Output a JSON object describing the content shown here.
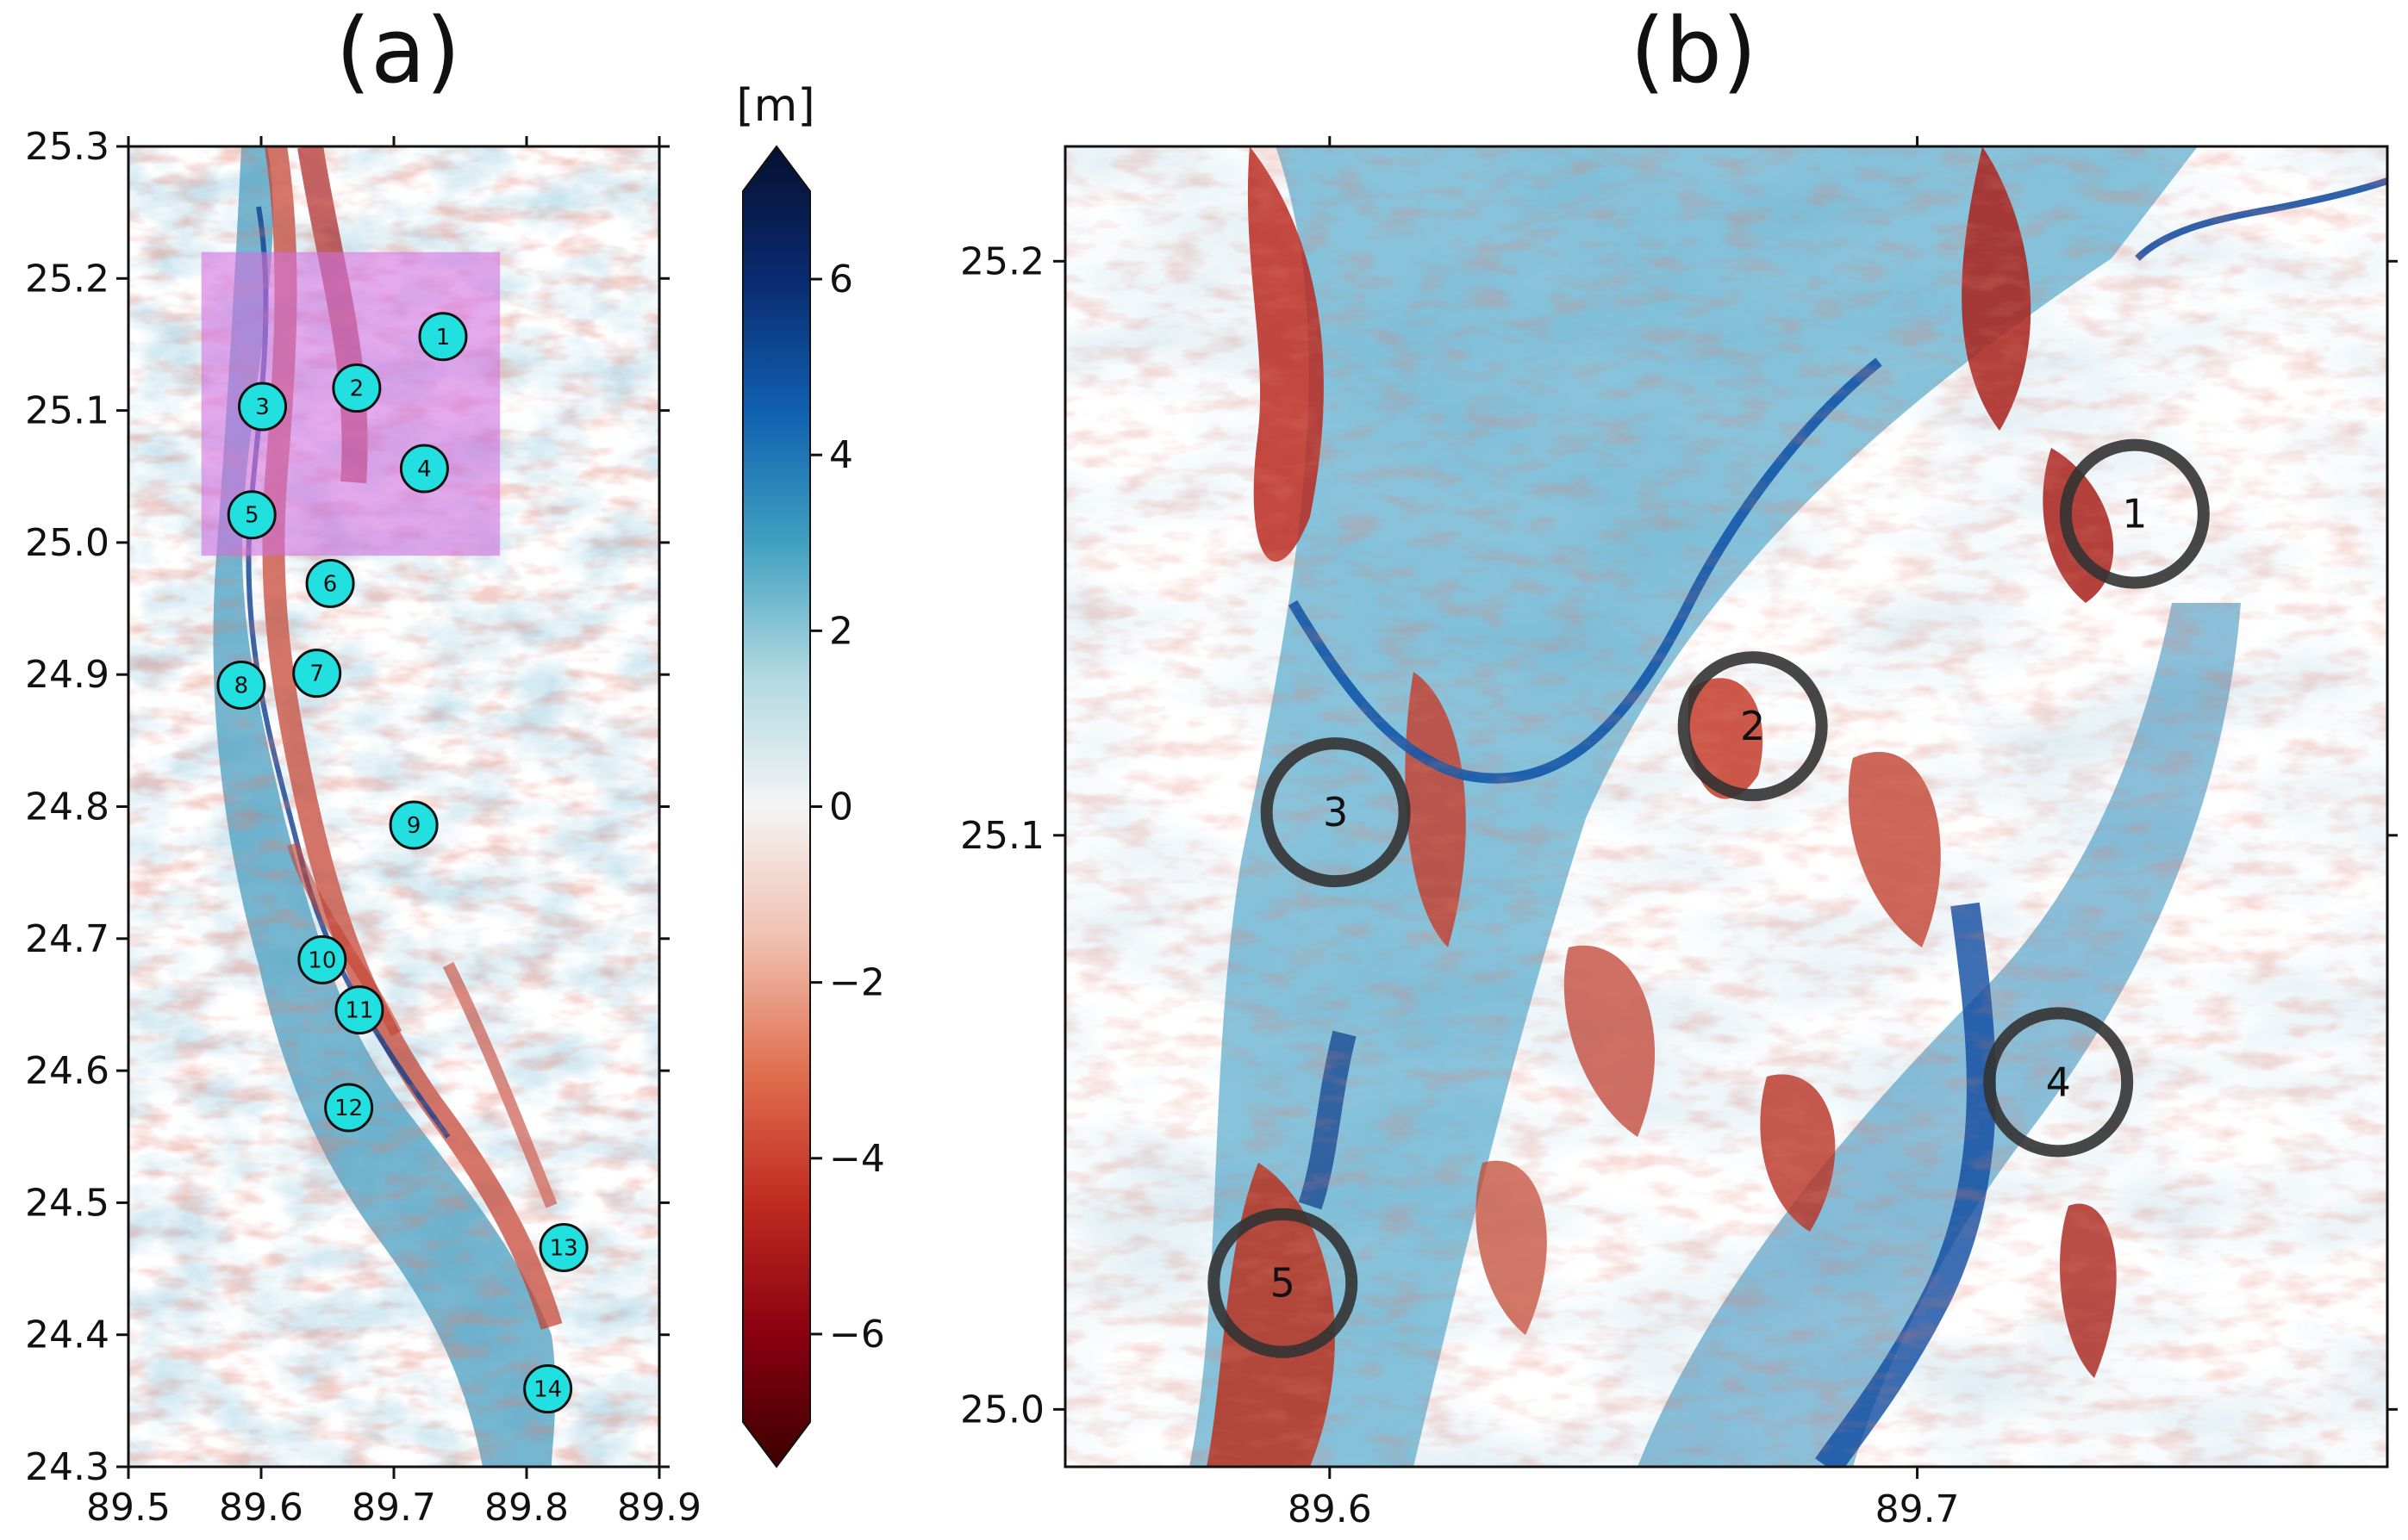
{
  "panel_a": {
    "label": "(a)",
    "x_ticks": [
      "89.5",
      "89.6",
      "89.7",
      "89.8",
      "89.9"
    ],
    "y_ticks": [
      "25.3",
      "25.2",
      "25.1",
      "25.0",
      "24.9",
      "24.8",
      "24.7",
      "24.6",
      "24.5",
      "24.4",
      "24.3"
    ],
    "x_range": [
      89.5,
      89.9
    ],
    "y_range": [
      24.3,
      25.3
    ],
    "highlight_box": {
      "lon": [
        89.555,
        89.78
      ],
      "lat": [
        24.99,
        25.22
      ],
      "color": "#d070e0"
    },
    "markers": [
      {
        "id": "1",
        "lon": 89.737,
        "lat": 25.156
      },
      {
        "id": "2",
        "lon": 89.672,
        "lat": 25.117
      },
      {
        "id": "3",
        "lon": 89.601,
        "lat": 25.103
      },
      {
        "id": "4",
        "lon": 89.723,
        "lat": 25.056
      },
      {
        "id": "5",
        "lon": 89.593,
        "lat": 25.021
      },
      {
        "id": "6",
        "lon": 89.652,
        "lat": 24.969
      },
      {
        "id": "7",
        "lon": 89.642,
        "lat": 24.901
      },
      {
        "id": "8",
        "lon": 89.585,
        "lat": 24.892
      },
      {
        "id": "9",
        "lon": 89.715,
        "lat": 24.786
      },
      {
        "id": "10",
        "lon": 89.646,
        "lat": 24.684
      },
      {
        "id": "11",
        "lon": 89.674,
        "lat": 24.646
      },
      {
        "id": "12",
        "lon": 89.666,
        "lat": 24.572
      },
      {
        "id": "13",
        "lon": 89.828,
        "lat": 24.466
      },
      {
        "id": "14",
        "lon": 89.816,
        "lat": 24.359
      }
    ],
    "marker_color": "#22e0e0"
  },
  "colorbar": {
    "unit": "[m]",
    "ticks": [
      "6",
      "4",
      "2",
      "0",
      "−2",
      "−4",
      "−6"
    ],
    "tick_values": [
      6,
      4,
      2,
      0,
      -2,
      -4,
      -6
    ],
    "range": [
      -7,
      7
    ],
    "colors": [
      "#3b0000",
      "#8a0010",
      "#c02a20",
      "#e07050",
      "#f0c0b0",
      "#f4f4f4",
      "#b0d8e0",
      "#40a0c0",
      "#1060b0",
      "#0a2a70",
      "#061030"
    ]
  },
  "panel_b": {
    "label": "(b)",
    "x_ticks": [
      "89.6",
      "89.7"
    ],
    "y_ticks": [
      "25.2",
      "25.1",
      "25.0"
    ],
    "x_range": [
      89.555,
      89.78
    ],
    "y_range": [
      24.99,
      25.22
    ],
    "circles": [
      {
        "id": "1",
        "lon": 89.737,
        "lat": 25.156
      },
      {
        "id": "2",
        "lon": 89.672,
        "lat": 25.119
      },
      {
        "id": "3",
        "lon": 89.601,
        "lat": 25.104
      },
      {
        "id": "4",
        "lon": 89.724,
        "lat": 25.057
      },
      {
        "id": "5",
        "lon": 89.592,
        "lat": 25.022
      }
    ]
  }
}
